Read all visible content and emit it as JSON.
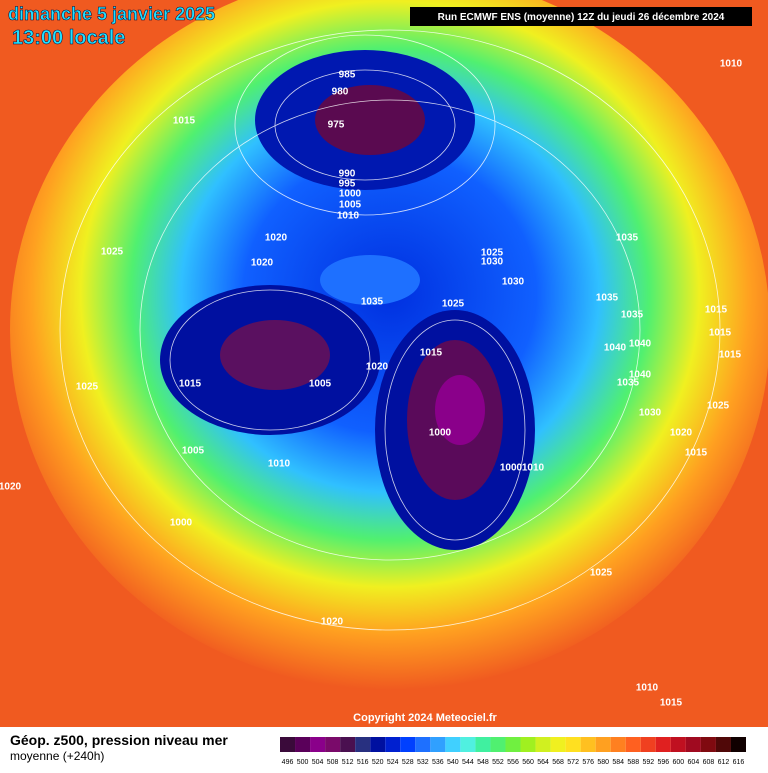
{
  "header": {
    "date": "dimanche 5 janvier 2025",
    "time": "13:00 locale",
    "run": "Run ECMWF ENS (moyenne) 12Z du jeudi 26 décembre 2024"
  },
  "isobar_labels": [
    "985",
    "980",
    "975",
    "990",
    "995",
    "1000",
    "1005",
    "1010",
    "1015",
    "1010",
    "1025",
    "1020",
    "1020",
    "1035",
    "1025",
    "1030",
    "1030",
    "1025",
    "1035",
    "1035",
    "1035",
    "1015",
    "1015",
    "1015",
    "1040",
    "1040",
    "1040",
    "1035",
    "1030",
    "1025",
    "1020",
    "1015",
    "1015",
    "1020",
    "1005",
    "1015",
    "1025",
    "1005",
    "1010",
    "1000",
    "1000",
    "1010",
    "1000",
    "1020",
    "1025",
    "1020",
    "1010",
    "1015"
  ],
  "copyright": "Copyright 2024 Meteociel.fr",
  "legend": {
    "title": "Géop. z500, pression niveau mer",
    "subtitle": "moyenne  (+240h)",
    "values": [
      496,
      500,
      504,
      508,
      512,
      516,
      520,
      524,
      528,
      532,
      536,
      540,
      544,
      548,
      552,
      556,
      560,
      564,
      568,
      572,
      576,
      580,
      584,
      588,
      592,
      596,
      600,
      604,
      608,
      612,
      616
    ],
    "colors": [
      "#3a0a3a",
      "#5a005a",
      "#8a008a",
      "#7a0a6a",
      "#4a1050",
      "#283080",
      "#0010a0",
      "#0020d0",
      "#0040ff",
      "#1e70ff",
      "#30a0ff",
      "#40d0ff",
      "#50f0e0",
      "#40f0a0",
      "#50f070",
      "#70f040",
      "#a0f020",
      "#d0f020",
      "#f0f020",
      "#ffe020",
      "#ffc020",
      "#ffa020",
      "#ff8020",
      "#ff6020",
      "#f04020",
      "#e02020",
      "#c01020",
      "#a00a20",
      "#800a10",
      "#500808",
      "#100000"
    ]
  }
}
